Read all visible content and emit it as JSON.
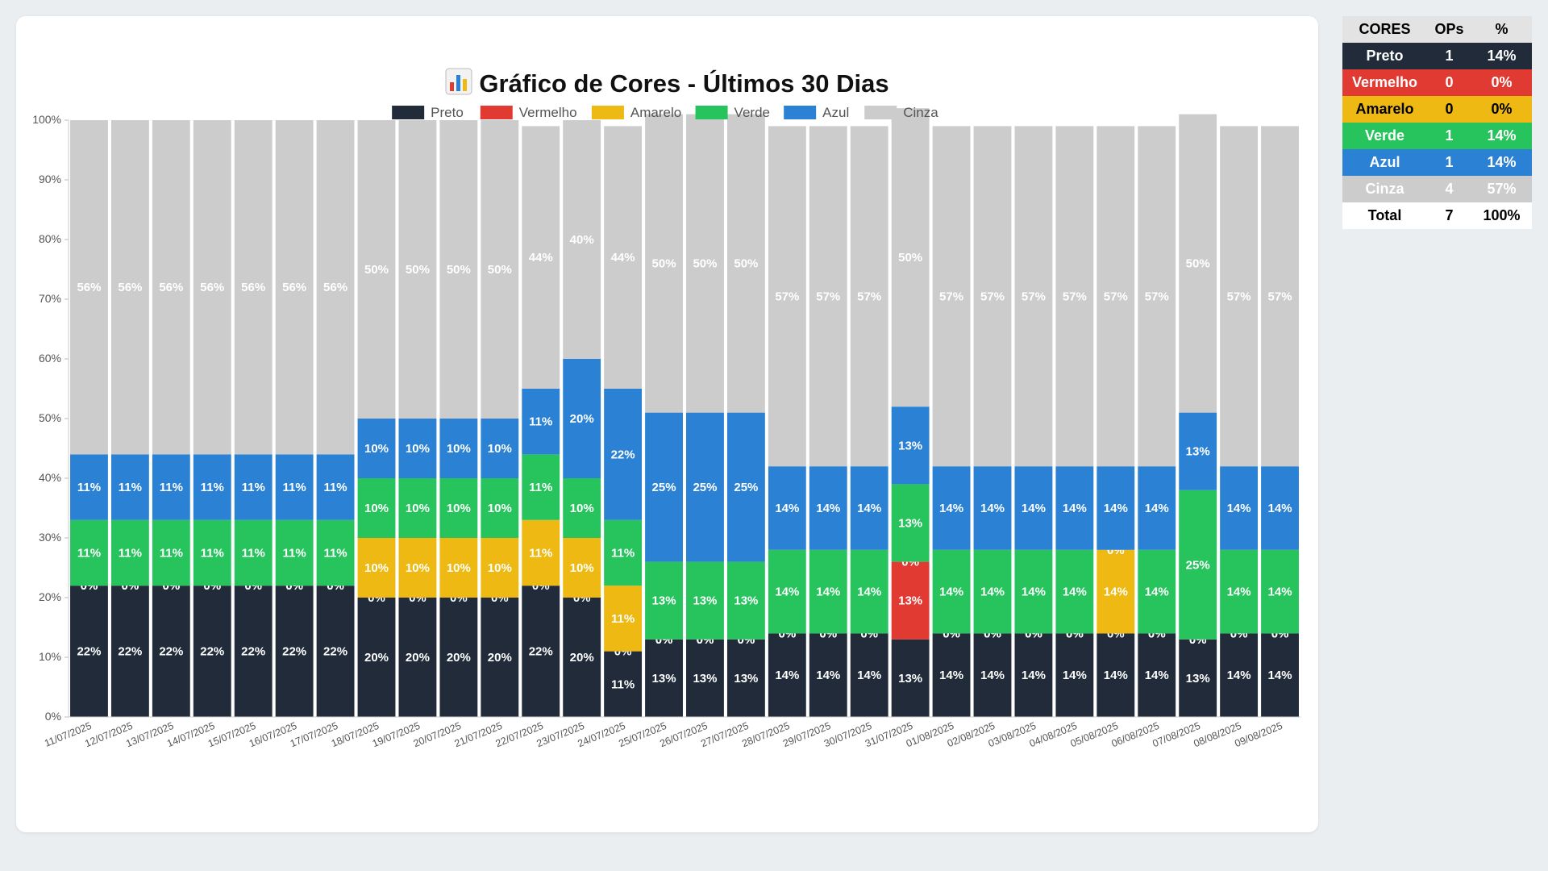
{
  "title": "Gráfico de Cores - Últimos 30 Dias",
  "title_icon": "bar-chart-icon",
  "chart_data": {
    "type": "bar",
    "stacked": true,
    "ylim": [
      0,
      100
    ],
    "yticks": [
      "0%",
      "10%",
      "20%",
      "30%",
      "40%",
      "50%",
      "60%",
      "70%",
      "80%",
      "90%",
      "100%"
    ],
    "legend_position": "top",
    "categories": [
      "11/07/2025",
      "12/07/2025",
      "13/07/2025",
      "14/07/2025",
      "15/07/2025",
      "16/07/2025",
      "17/07/2025",
      "18/07/2025",
      "19/07/2025",
      "20/07/2025",
      "21/07/2025",
      "22/07/2025",
      "23/07/2025",
      "24/07/2025",
      "25/07/2025",
      "26/07/2025",
      "27/07/2025",
      "28/07/2025",
      "29/07/2025",
      "30/07/2025",
      "31/07/2025",
      "01/08/2025",
      "02/08/2025",
      "03/08/2025",
      "04/08/2025",
      "05/08/2025",
      "06/08/2025",
      "07/08/2025",
      "08/08/2025",
      "09/08/2025"
    ],
    "series": [
      {
        "name": "Preto",
        "color": "#212b3a",
        "values": [
          22,
          22,
          22,
          22,
          22,
          22,
          22,
          20,
          20,
          20,
          20,
          22,
          20,
          11,
          13,
          13,
          13,
          14,
          14,
          14,
          13,
          14,
          14,
          14,
          14,
          14,
          14,
          13,
          14,
          14
        ]
      },
      {
        "name": "Vermelho",
        "color": "#e03a33",
        "values": [
          0,
          0,
          0,
          0,
          0,
          0,
          0,
          0,
          0,
          0,
          0,
          0,
          0,
          0,
          0,
          0,
          0,
          0,
          0,
          0,
          13,
          0,
          0,
          0,
          0,
          0,
          0,
          0,
          0,
          0
        ]
      },
      {
        "name": "Amarelo",
        "color": "#edb912",
        "values": [
          0,
          0,
          0,
          0,
          0,
          0,
          0,
          10,
          10,
          10,
          10,
          11,
          10,
          11,
          0,
          0,
          0,
          0,
          0,
          0,
          0,
          0,
          0,
          0,
          0,
          14,
          0,
          0,
          0,
          0
        ]
      },
      {
        "name": "Verde",
        "color": "#27c45e",
        "values": [
          11,
          11,
          11,
          11,
          11,
          11,
          11,
          10,
          10,
          10,
          10,
          11,
          10,
          11,
          13,
          13,
          13,
          14,
          14,
          14,
          13,
          14,
          14,
          14,
          14,
          0,
          14,
          25,
          14,
          14
        ]
      },
      {
        "name": "Azul",
        "color": "#2b82d4",
        "values": [
          11,
          11,
          11,
          11,
          11,
          11,
          11,
          10,
          10,
          10,
          10,
          11,
          20,
          22,
          25,
          25,
          25,
          14,
          14,
          14,
          13,
          14,
          14,
          14,
          14,
          14,
          14,
          13,
          14,
          14
        ]
      },
      {
        "name": "Cinza",
        "color": "#cccccc",
        "values": [
          56,
          56,
          56,
          56,
          56,
          56,
          56,
          50,
          50,
          50,
          50,
          44,
          40,
          44,
          50,
          50,
          50,
          57,
          57,
          57,
          50,
          57,
          57,
          57,
          57,
          57,
          57,
          50,
          57,
          57
        ]
      }
    ]
  },
  "summary": {
    "headers": [
      "CORES",
      "OPs",
      "%"
    ],
    "rows": [
      {
        "name": "Preto",
        "ops": "1",
        "pct": "14%",
        "bg": "#212b3a",
        "fg": "#ffffff"
      },
      {
        "name": "Vermelho",
        "ops": "0",
        "pct": "0%",
        "bg": "#e03a33",
        "fg": "#ffffff"
      },
      {
        "name": "Amarelo",
        "ops": "0",
        "pct": "0%",
        "bg": "#edb912",
        "fg": "#000000"
      },
      {
        "name": "Verde",
        "ops": "1",
        "pct": "14%",
        "bg": "#27c45e",
        "fg": "#ffffff"
      },
      {
        "name": "Azul",
        "ops": "1",
        "pct": "14%",
        "bg": "#2b82d4",
        "fg": "#ffffff"
      },
      {
        "name": "Cinza",
        "ops": "4",
        "pct": "57%",
        "bg": "#cccccc",
        "fg": "#ffffff"
      }
    ],
    "total": {
      "name": "Total",
      "ops": "7",
      "pct": "100%"
    }
  }
}
